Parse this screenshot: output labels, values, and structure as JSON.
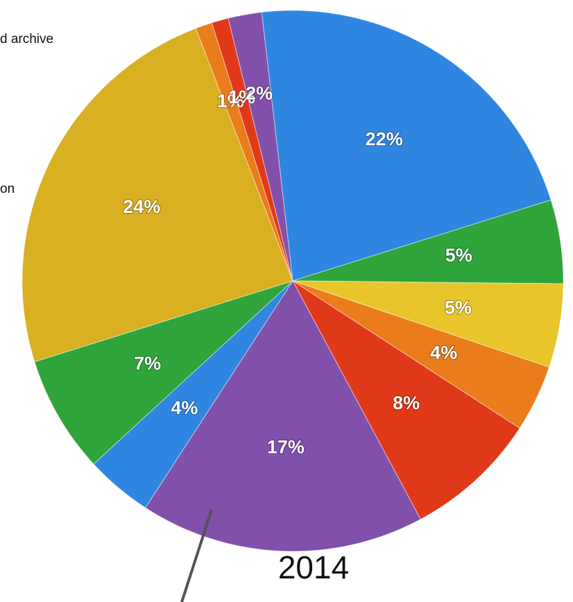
{
  "chart_data": {
    "type": "pie",
    "title": "2014",
    "values": [
      22,
      5,
      5,
      4,
      8,
      17,
      4,
      7,
      24,
      1,
      1,
      2
    ],
    "value_labels": [
      "22%",
      "5%",
      "5%",
      "4%",
      "8%",
      "17%",
      "4%",
      "7%",
      "24%",
      "1%",
      "1%",
      "2%"
    ],
    "colors": [
      "#2f86e0",
      "#2ea43a",
      "#e8c52a",
      "#ea7c1c",
      "#e0391a",
      "#8150aa",
      "#2f86e0",
      "#2ea43a",
      "#d8b022",
      "#ea7c1c",
      "#e0391a",
      "#8150aa"
    ],
    "legend_fragments": [
      "d archive",
      "on"
    ]
  }
}
